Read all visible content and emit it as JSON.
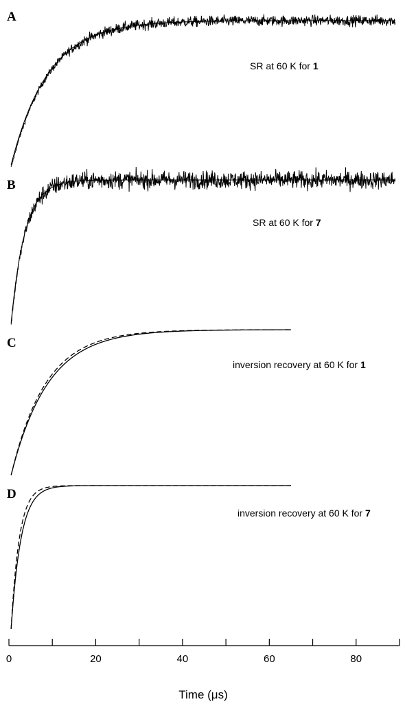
{
  "chart_data": {
    "type": "line",
    "xlabel": "Time (μs)",
    "xlim": [
      0,
      90
    ],
    "x_ticks_major": [
      0,
      20,
      40,
      60,
      80
    ],
    "x_ticks_minor": [
      10,
      30,
      50,
      70,
      90
    ],
    "grid": false,
    "panels": [
      {
        "label": "A",
        "annotation": {
          "text": "SR at 60 K for ",
          "bold": "1"
        },
        "x_range": [
          0.5,
          89
        ],
        "series": [
          {
            "style": "noisy",
            "tau": 8.5,
            "y0": -0.02,
            "noise": 0.035
          },
          {
            "style": "solid",
            "tau": 8.5,
            "y0": 0.0
          }
        ]
      },
      {
        "label": "B",
        "annotation": {
          "text": "SR at 60 K for ",
          "bold": "7"
        },
        "x_range": [
          0.5,
          89
        ],
        "series": [
          {
            "style": "noisy",
            "tau": 3.2,
            "y0": -0.02,
            "noise": 0.06
          },
          {
            "style": "solid",
            "tau": 3.2,
            "y0": 0.0
          }
        ]
      },
      {
        "label": "C",
        "annotation": {
          "text": "inversion recovery at 60 K for ",
          "bold": "1"
        },
        "x_range": [
          0.5,
          65
        ],
        "series": [
          {
            "style": "solid",
            "tau": 8.5,
            "y0": 0.0
          },
          {
            "style": "dashed",
            "tau": 8.0,
            "y0": 0.0
          }
        ]
      },
      {
        "label": "D",
        "annotation": {
          "text": "inversion recovery at 60 K for ",
          "bold": "7"
        },
        "x_range": [
          0.5,
          65
        ],
        "series": [
          {
            "style": "solid",
            "tau": 2.3,
            "y0": 0.0
          },
          {
            "style": "dashed",
            "tau": 1.9,
            "y0": 0.0
          }
        ]
      }
    ]
  }
}
